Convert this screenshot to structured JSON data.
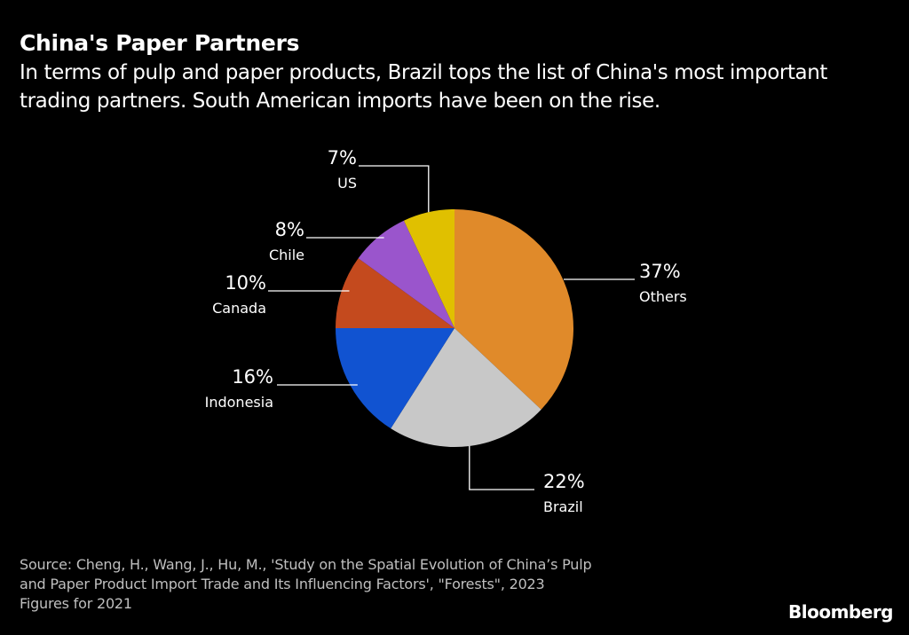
{
  "title": "China's Paper Partners",
  "subtitle": "In terms of pulp and paper products, Brazil tops the list of China's most important trading partners. South American imports have been on the rise.",
  "source_lines": [
    "Source: Cheng, H., Wang, J., Hu, M., 'Study on the Spatial Evolution of China’s Pulp",
    "and Paper Product Import Trade and Its Influencing Factors', \"Forests\", 2023",
    "Figures for 2021"
  ],
  "brand": "Bloomberg",
  "chart_data": {
    "type": "pie",
    "title": "China's Paper Partners",
    "start": "12 o'clock",
    "direction": "clockwise",
    "slices": [
      {
        "label": "Others",
        "value": 37,
        "display": "37%",
        "color": "#E08A2A"
      },
      {
        "label": "Brazil",
        "value": 22,
        "display": "22%",
        "color": "#C8C8C8"
      },
      {
        "label": "Indonesia",
        "value": 16,
        "display": "16%",
        "color": "#1153D1"
      },
      {
        "label": "Canada",
        "value": 10,
        "display": "10%",
        "color": "#C44A1E"
      },
      {
        "label": "Chile",
        "value": 8,
        "display": "8%",
        "color": "#9A55CC"
      },
      {
        "label": "US",
        "value": 7,
        "display": "7%",
        "color": "#E0C000"
      }
    ]
  }
}
